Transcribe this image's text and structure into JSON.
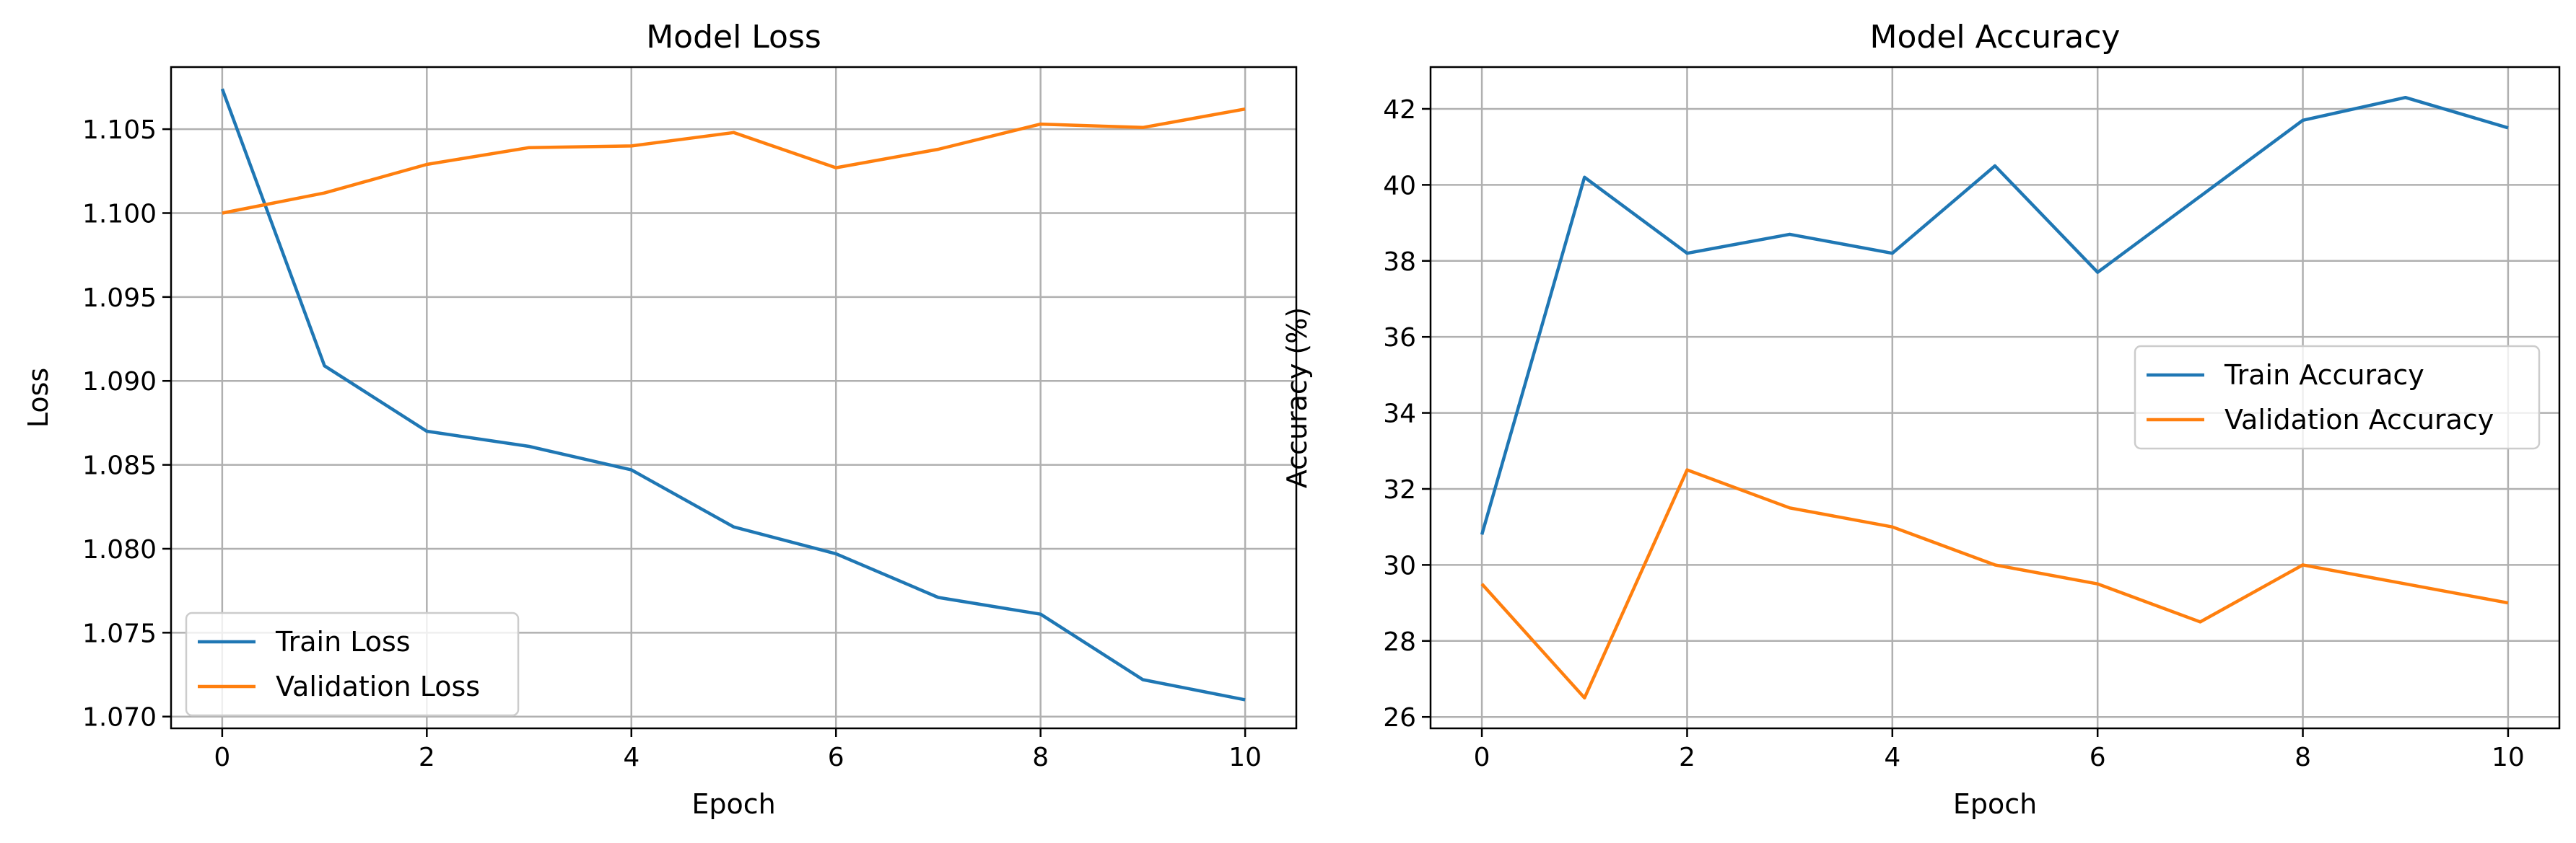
{
  "chart_data": [
    {
      "type": "line",
      "title": "Model Loss",
      "xlabel": "Epoch",
      "ylabel": "Loss",
      "xlim": [
        -0.5,
        10.5
      ],
      "ylim": [
        1.0693,
        1.1087
      ],
      "xticks": [
        0,
        2,
        4,
        6,
        8,
        10
      ],
      "yticks": [
        1.07,
        1.075,
        1.08,
        1.085,
        1.09,
        1.095,
        1.1,
        1.105
      ],
      "ytick_decimals": 3,
      "grid": true,
      "legend_position": "lower-left",
      "x": [
        0,
        1,
        2,
        3,
        4,
        5,
        6,
        7,
        8,
        9,
        10
      ],
      "series": [
        {
          "name": "Train Loss",
          "color": "#1f77b4",
          "values": [
            1.1074,
            1.0909,
            1.087,
            1.0861,
            1.0847,
            1.0813,
            1.0797,
            1.0771,
            1.0761,
            1.0722,
            1.071
          ]
        },
        {
          "name": "Validation Loss",
          "color": "#ff7f0e",
          "values": [
            1.1,
            1.1012,
            1.1029,
            1.1039,
            1.104,
            1.1048,
            1.1027,
            1.1038,
            1.1053,
            1.1051,
            1.1062
          ]
        }
      ]
    },
    {
      "type": "line",
      "title": "Model Accuracy",
      "xlabel": "Epoch",
      "ylabel": "Accuracy (%)",
      "xlim": [
        -0.5,
        10.5
      ],
      "ylim": [
        25.7,
        43.1
      ],
      "xticks": [
        0,
        2,
        4,
        6,
        8,
        10
      ],
      "yticks": [
        26,
        28,
        30,
        32,
        34,
        36,
        38,
        40,
        42
      ],
      "ytick_decimals": 0,
      "grid": true,
      "legend_position": "center-right",
      "x": [
        0,
        1,
        2,
        3,
        4,
        5,
        6,
        7,
        8,
        9,
        10
      ],
      "series": [
        {
          "name": "Train Accuracy",
          "color": "#1f77b4",
          "values": [
            30.8,
            40.2,
            38.2,
            38.7,
            38.2,
            40.5,
            37.7,
            39.7,
            41.7,
            42.3,
            41.5
          ]
        },
        {
          "name": "Validation Accuracy",
          "color": "#ff7f0e",
          "values": [
            29.5,
            26.5,
            32.5,
            31.5,
            31.0,
            30.0,
            29.5,
            28.5,
            30.0,
            29.5,
            29.0
          ]
        }
      ]
    }
  ]
}
